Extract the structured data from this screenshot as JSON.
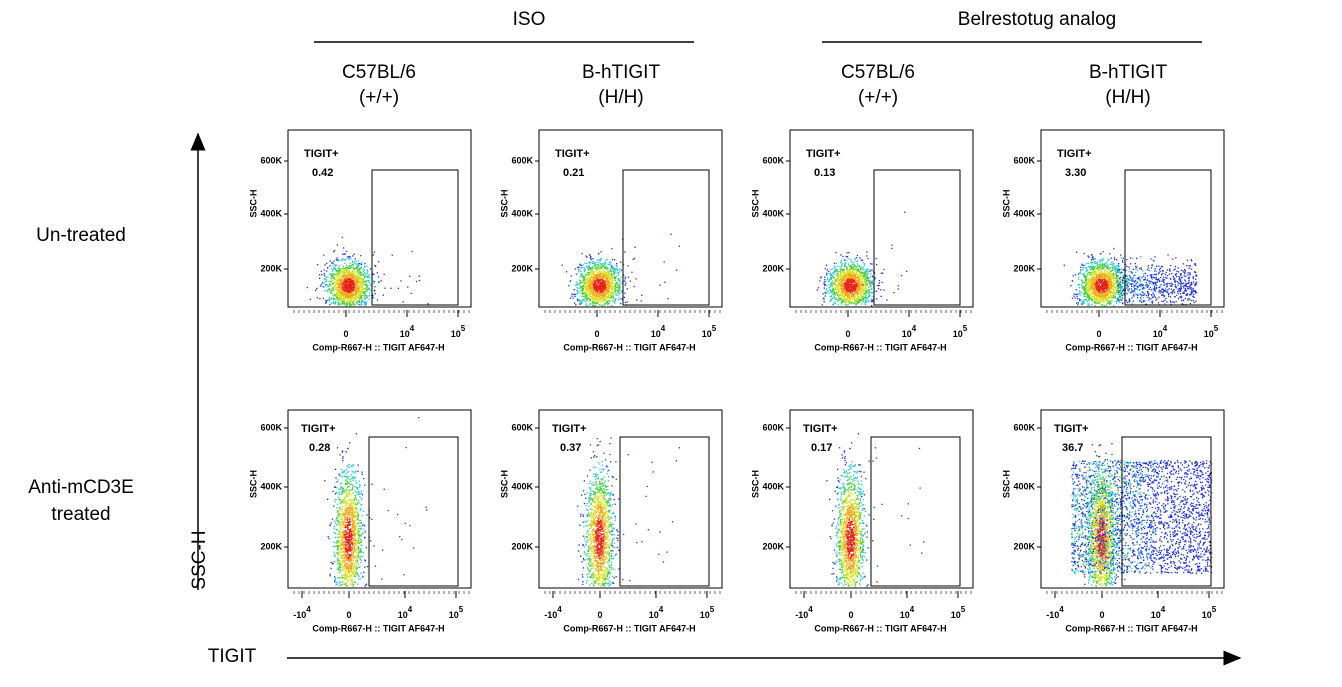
{
  "groups": [
    {
      "label": "ISO"
    },
    {
      "label": "Belrestotug analog"
    }
  ],
  "columns": [
    {
      "line1": "C57BL/6",
      "line2": "(+/+)"
    },
    {
      "line1": "B-hTIGIT",
      "line2": "(H/H)"
    },
    {
      "line1": "C57BL/6",
      "line2": "(+/+)"
    },
    {
      "line1": "B-hTIGIT",
      "line2": "(H/H)"
    }
  ],
  "rows": [
    {
      "label_lines": [
        "Un-treated"
      ]
    },
    {
      "label_lines": [
        "Anti-mCD3E",
        "treated"
      ]
    }
  ],
  "y_axis_title": "SSC-H",
  "x_axis_title": "TIGIT",
  "panel_axes": {
    "yticks": [
      "600K",
      "400K",
      "200K"
    ],
    "y_label": "SSC-H",
    "x_label": "Comp-R667-H :: TIGIT AF647-H",
    "xticks_by_row": [
      [
        {
          "text": "0"
        },
        {
          "base": "10",
          "exp": "4"
        },
        {
          "base": "10",
          "exp": "5"
        }
      ],
      [
        {
          "base": "-10",
          "exp": "4"
        },
        {
          "text": "0"
        },
        {
          "base": "10",
          "exp": "4"
        },
        {
          "base": "10",
          "exp": "5"
        }
      ]
    ]
  },
  "panels": [
    [
      {
        "gate_label": "TIGIT+",
        "value": "0.42"
      },
      {
        "gate_label": "TIGIT+",
        "value": "0.21"
      },
      {
        "gate_label": "TIGIT+",
        "value": "0.13"
      },
      {
        "gate_label": "TIGIT+",
        "value": "3.30"
      }
    ],
    [
      {
        "gate_label": "TIGIT+",
        "value": "0.28"
      },
      {
        "gate_label": "TIGIT+",
        "value": "0.37"
      },
      {
        "gate_label": "TIGIT+",
        "value": "0.17"
      },
      {
        "gate_label": "TIGIT+",
        "value": "36.7"
      }
    ]
  ]
}
